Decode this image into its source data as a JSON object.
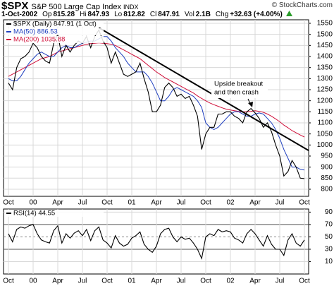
{
  "header": {
    "symbol": "$SPX",
    "name": "S&P 500 Large Cap Index",
    "exchange": "INDX",
    "copyright": "© StockCharts.com",
    "date": "1-Oct-2002",
    "quote": [
      {
        "label": "Op",
        "value": "815.28"
      },
      {
        "label": "Hi",
        "value": "847.93"
      },
      {
        "label": "Lo",
        "value": "812.82"
      },
      {
        "label": "Cl",
        "value": "847.91"
      },
      {
        "label": "Vol",
        "value": "2.1B"
      },
      {
        "label": "Chg",
        "value": "+32.63 (+4.00%)"
      }
    ]
  },
  "chart_data": [
    {
      "type": "line",
      "categories": [
        "Oct",
        null,
        null,
        null,
        null,
        null,
        "00",
        null,
        null,
        null,
        null,
        null,
        "Apr",
        null,
        null,
        null,
        null,
        null,
        "Jul",
        null,
        null,
        null,
        null,
        null,
        "Oct",
        null,
        null,
        null,
        null,
        null,
        "01",
        null,
        null,
        null,
        null,
        null,
        "Apr",
        null,
        null,
        null,
        null,
        null,
        "Jul",
        null,
        null,
        null,
        null,
        null,
        "Oct",
        null,
        null,
        null,
        null,
        null,
        "02",
        null,
        null,
        null,
        null,
        null,
        "Apr",
        null,
        null,
        null,
        null,
        null,
        "Jul",
        null,
        null,
        null,
        null,
        null,
        "Oct"
      ],
      "series": [
        {
          "name": "$SPX (Daily) 847.91 (1 Oct)",
          "color": "#000000",
          "values": [
            1280,
            1250,
            1350,
            1390,
            1400,
            1420,
            1460,
            1440,
            1400,
            1380,
            1370,
            1460,
            1500,
            1400,
            1450,
            1420,
            1450,
            1470,
            1460,
            1490,
            1440,
            1490,
            1520,
            1470,
            1440,
            1370,
            1420,
            1370,
            1320,
            1310,
            1320,
            1330,
            1370,
            1300,
            1240,
            1150,
            1150,
            1180,
            1260,
            1280,
            1260,
            1220,
            1230,
            1210,
            1220,
            1180,
            1130,
            980,
            1050,
            1080,
            1080,
            1140,
            1140,
            1150,
            1150,
            1130,
            1120,
            1100,
            1150,
            1165,
            1145,
            1120,
            1080,
            1100,
            1060,
            1000,
            950,
            860,
            880,
            930,
            900,
            850,
            848
          ]
        },
        {
          "name": "MA(50) 886.53",
          "color": "#1f3fbf",
          "values": [
            1300,
            1290,
            1290,
            1310,
            1340,
            1370,
            1390,
            1410,
            1420,
            1410,
            1400,
            1400,
            1420,
            1440,
            1450,
            1440,
            1440,
            1450,
            1460,
            1465,
            1470,
            1470,
            1480,
            1490,
            1490,
            1470,
            1440,
            1420,
            1400,
            1370,
            1350,
            1330,
            1330,
            1330,
            1310,
            1280,
            1240,
            1200,
            1200,
            1220,
            1250,
            1260,
            1250,
            1240,
            1230,
            1220,
            1200,
            1170,
            1100,
            1080,
            1070,
            1080,
            1100,
            1120,
            1140,
            1150,
            1150,
            1140,
            1130,
            1130,
            1140,
            1145,
            1140,
            1120,
            1100,
            1070,
            1030,
            980,
            940,
            900,
            900,
            890,
            887
          ]
        },
        {
          "name": "MA(200) 1035.88",
          "color": "#d0103a",
          "values": [
            1310,
            1320,
            1330,
            1340,
            1350,
            1360,
            1370,
            1380,
            1390,
            1395,
            1400,
            1410,
            1420,
            1425,
            1430,
            1435,
            1440,
            1445,
            1450,
            1455,
            1458,
            1460,
            1462,
            1460,
            1458,
            1455,
            1450,
            1440,
            1430,
            1420,
            1410,
            1400,
            1390,
            1375,
            1360,
            1345,
            1330,
            1318,
            1305,
            1295,
            1285,
            1275,
            1265,
            1255,
            1245,
            1235,
            1222,
            1210,
            1200,
            1190,
            1182,
            1175,
            1168,
            1162,
            1158,
            1155,
            1152,
            1150,
            1150,
            1152,
            1155,
            1152,
            1148,
            1140,
            1130,
            1118,
            1105,
            1090,
            1078,
            1065,
            1055,
            1045,
            1036
          ]
        }
      ],
      "trendline": {
        "color": "#000000",
        "values": [
          1530,
          975
        ]
      },
      "annotation": [
        "Upside breakout",
        "and then crash"
      ],
      "ylim": [
        768,
        1566
      ],
      "yticks": [
        800,
        850,
        900,
        950,
        1000,
        1050,
        1100,
        1150,
        1200,
        1250,
        1300,
        1350,
        1400,
        1450,
        1500,
        1550
      ],
      "grid": true
    },
    {
      "type": "line",
      "categories": [
        "Oct",
        null,
        null,
        null,
        null,
        null,
        "00",
        null,
        null,
        null,
        null,
        null,
        "Apr",
        null,
        null,
        null,
        null,
        null,
        "Jul",
        null,
        null,
        null,
        null,
        null,
        "Oct",
        null,
        null,
        null,
        null,
        null,
        "01",
        null,
        null,
        null,
        null,
        null,
        "Apr",
        null,
        null,
        null,
        null,
        null,
        "Jul",
        null,
        null,
        null,
        null,
        null,
        "Oct",
        null,
        null,
        null,
        null,
        null,
        "02",
        null,
        null,
        null,
        null,
        null,
        "Apr",
        null,
        null,
        null,
        null,
        null,
        "Jul",
        null,
        null,
        null,
        null,
        null,
        "Oct"
      ],
      "series": [
        {
          "name": "RSI(14) 44.55",
          "color": "#000000",
          "values": [
            55,
            42,
            62,
            66,
            64,
            68,
            70,
            55,
            45,
            42,
            40,
            60,
            68,
            40,
            55,
            48,
            56,
            60,
            52,
            62,
            44,
            60,
            66,
            45,
            40,
            32,
            52,
            40,
            35,
            38,
            48,
            52,
            58,
            38,
            30,
            25,
            35,
            55,
            62,
            64,
            50,
            42,
            50,
            46,
            48,
            40,
            30,
            15,
            50,
            55,
            52,
            62,
            58,
            60,
            58,
            48,
            45,
            40,
            55,
            62,
            55,
            45,
            35,
            52,
            38,
            30,
            30,
            20,
            45,
            55,
            40,
            35,
            45
          ]
        }
      ],
      "ylim": [
        -10,
        95
      ],
      "yticks": [
        10,
        30,
        50,
        70,
        90
      ],
      "grid": true
    }
  ]
}
